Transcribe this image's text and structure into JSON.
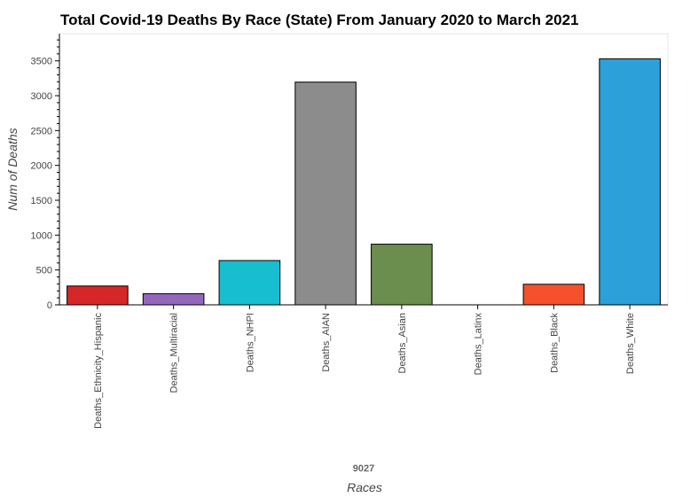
{
  "chart_data": {
    "type": "bar",
    "title": "Total Covid-19 Deaths By Race (State) From January 2020 to March 2021",
    "xlabel": "Races",
    "ylabel": "Num of Deaths",
    "annotation": "9027",
    "categories": [
      "Deaths_Ethnicity_Hispanic",
      "Deaths_Multiracial",
      "Deaths_NHPI",
      "Deaths_AIAN",
      "Deaths_Asian",
      "Deaths_Latinx",
      "Deaths_Black",
      "Deaths_White"
    ],
    "values": [
      270,
      160,
      635,
      3195,
      870,
      0,
      295,
      3530
    ],
    "colors": [
      "#d62728",
      "#9467bd",
      "#17becf",
      "#8c8c8c",
      "#6b8e4e",
      "#ffffff",
      "#f4512c",
      "#2ca0d9"
    ],
    "ylim": [
      0,
      3890
    ],
    "yticks": [
      0,
      500,
      1000,
      1500,
      2000,
      2500,
      3000,
      3500
    ],
    "grid": false,
    "legend": "none"
  }
}
